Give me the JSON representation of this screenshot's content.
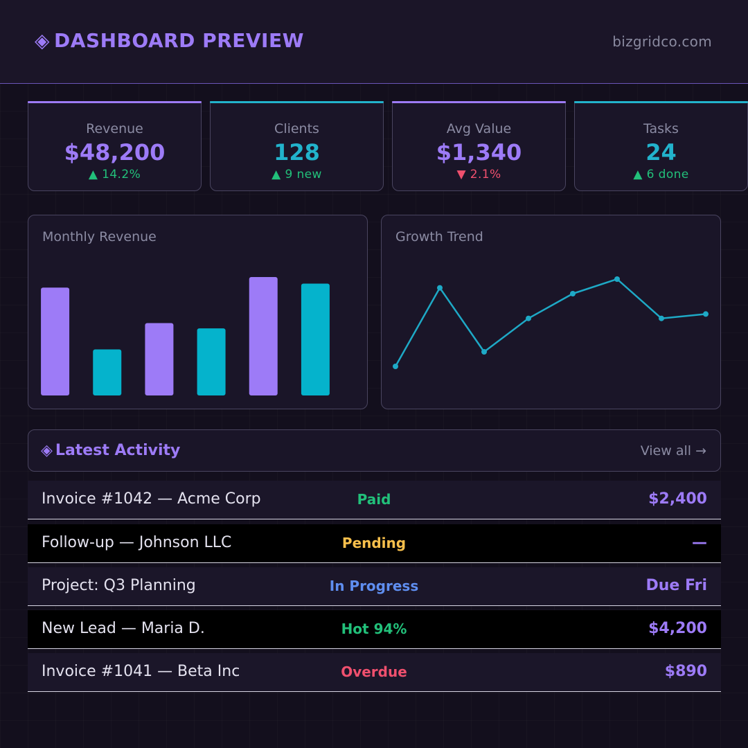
{
  "header": {
    "brand_icon": "◈",
    "title": "DASHBOARD PREVIEW",
    "domain": "bizgridco.com"
  },
  "stats": [
    {
      "label": "Revenue",
      "value": "$48,200",
      "delta": "▲ 14.2%",
      "value_color": "#9d7bf7",
      "delta_color": "#22c07a",
      "accent": "#9d7bf7"
    },
    {
      "label": "Clients",
      "value": "128",
      "delta": "▲ 9 new",
      "value_color": "#22b3cc",
      "delta_color": "#22c07a",
      "accent": "#22b3cc"
    },
    {
      "label": "Avg Value",
      "value": "$1,340",
      "delta": "▼ 2.1%",
      "value_color": "#9d7bf7",
      "delta_color": "#f0506e",
      "accent": "#9d7bf7"
    },
    {
      "label": "Tasks",
      "value": "24",
      "delta": "▲ 6 done",
      "value_color": "#22b3cc",
      "delta_color": "#22c07a",
      "accent": "#22b3cc"
    }
  ],
  "panels": {
    "bar_title": "Monthly Revenue",
    "line_title": "Growth Trend"
  },
  "chart_data": [
    {
      "type": "bar",
      "title": "Monthly Revenue",
      "categories": [
        "",
        "",
        "",
        "",
        "",
        ""
      ],
      "values": [
        82,
        35,
        55,
        51,
        90,
        85
      ],
      "colors": [
        "#9d7bf7",
        "#05b3cc",
        "#9d7bf7",
        "#05b3cc",
        "#9d7bf7",
        "#05b3cc"
      ],
      "ylim": [
        0,
        100
      ],
      "grid": false
    },
    {
      "type": "line",
      "title": "Growth Trend",
      "x": [
        1,
        2,
        3,
        4,
        5,
        6,
        7,
        8
      ],
      "values": [
        20,
        74,
        30,
        53,
        70,
        80,
        53,
        56
      ],
      "color": "#1ea9c6",
      "ylim": [
        0,
        100
      ],
      "grid": false
    }
  ],
  "activity": {
    "icon": "◈",
    "title": "Latest Activity",
    "view_all": "View all →",
    "rows": [
      {
        "name": "Invoice #1042 — Acme Corp",
        "status": "Paid",
        "status_color": "#22c07a",
        "amount": "$2,400"
      },
      {
        "name": "Follow-up — Johnson LLC",
        "status": "Pending",
        "status_color": "#f9c04c",
        "amount": "—"
      },
      {
        "name": "Project: Q3 Planning",
        "status": "In Progress",
        "status_color": "#5f8ef0",
        "amount": "Due Fri"
      },
      {
        "name": "New Lead — Maria D.",
        "status": "Hot 94%",
        "status_color": "#22c07a",
        "amount": "$4,200"
      },
      {
        "name": "Invoice #1041 — Beta Inc",
        "status": "Overdue",
        "status_color": "#f0506e",
        "amount": "$890"
      }
    ]
  }
}
